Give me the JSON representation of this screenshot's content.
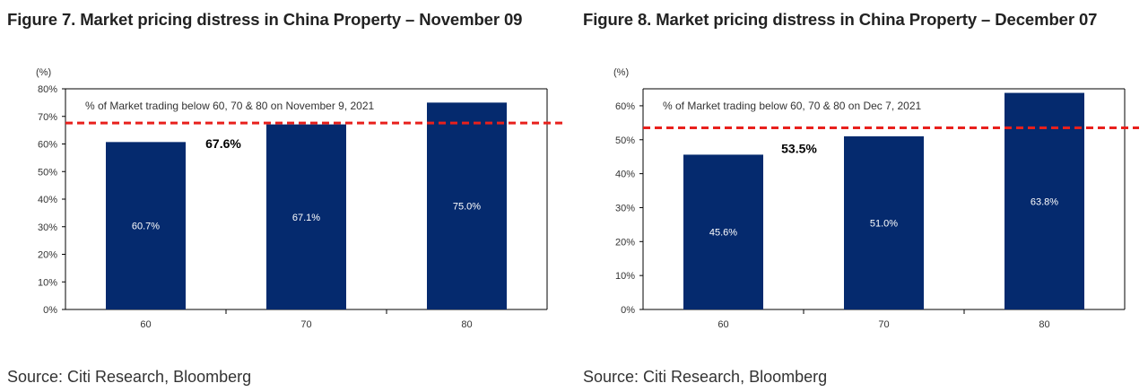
{
  "figures": [
    {
      "title": "Figure 7. Market pricing distress in China Property – November 09",
      "source": "Source: Citi Research, Bloomberg"
    },
    {
      "title": "Figure 8. Market pricing distress in China Property – December 07",
      "source": "Source: Citi Research, Bloomberg"
    }
  ],
  "colors": {
    "bar": "#052a6e",
    "reference_line": "#e8201c"
  },
  "chart_data": [
    {
      "type": "bar",
      "title": "",
      "unit_label": "(%)",
      "annotation": "% of Market trading below 60, 70 &  80 on November 9, 2021",
      "categories": [
        "60",
        "70",
        "80"
      ],
      "values": [
        60.7,
        67.1,
        75.0
      ],
      "value_labels": [
        "60.7%",
        "67.1%",
        "75.0%"
      ],
      "reference_line": {
        "value": 67.6,
        "label": "67.6%",
        "style": "dashed"
      },
      "ylim": [
        0,
        80
      ],
      "yticks": [
        0,
        10,
        20,
        30,
        40,
        50,
        60,
        70,
        80
      ],
      "ytick_labels": [
        "0%",
        "10%",
        "20%",
        "30%",
        "40%",
        "50%",
        "60%",
        "70%",
        "80%"
      ],
      "grid": false,
      "legend": "none"
    },
    {
      "type": "bar",
      "title": "",
      "unit_label": "(%)",
      "annotation": "% of Market trading below 60, 70 &  80 on Dec 7, 2021",
      "categories": [
        "60",
        "70",
        "80"
      ],
      "values": [
        45.6,
        51.0,
        63.8
      ],
      "value_labels": [
        "45.6%",
        "51.0%",
        "63.8%"
      ],
      "reference_line": {
        "value": 53.5,
        "label": "53.5%",
        "style": "dashed"
      },
      "ylim": [
        0,
        65
      ],
      "yticks": [
        0,
        10,
        20,
        30,
        40,
        50,
        60
      ],
      "ytick_labels": [
        "0%",
        "10%",
        "20%",
        "30%",
        "40%",
        "50%",
        "60%"
      ],
      "grid": false,
      "legend": "none"
    }
  ]
}
